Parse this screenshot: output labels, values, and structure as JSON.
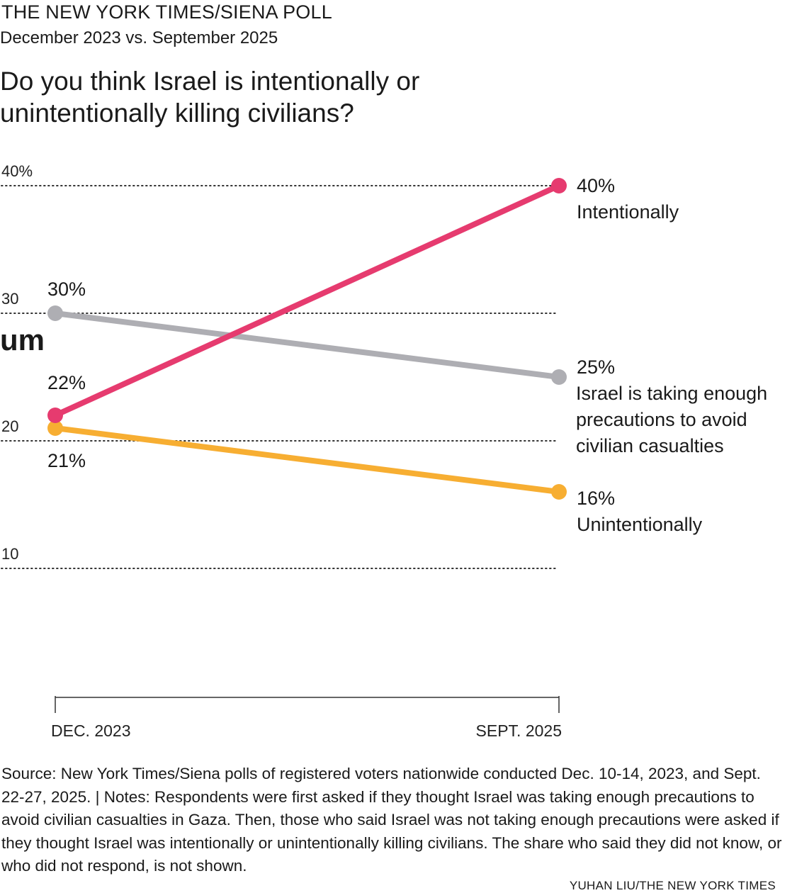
{
  "header": {
    "kicker": "THE NEW YORK TIMES/SIENA POLL",
    "subhead": "December 2023 vs. September 2025",
    "question": "Do you think Israel is intentionally or unintentionally killing civilians?",
    "stray_text": "um"
  },
  "chart_data": {
    "type": "line",
    "title": "Do you think Israel is intentionally or unintentionally killing civilians?",
    "categories": [
      "DEC. 2023",
      "SEPT. 2025"
    ],
    "ylim": [
      0,
      40
    ],
    "yticks": [
      {
        "value": 40,
        "label": "40%"
      },
      {
        "value": 30,
        "label": "30"
      },
      {
        "value": 20,
        "label": "20"
      },
      {
        "value": 10,
        "label": "10"
      }
    ],
    "grid": true,
    "gridstyle": "dotted",
    "series": [
      {
        "name": "Intentionally",
        "color": "#e63b6f",
        "values": [
          22,
          40
        ],
        "labels": [
          "22%",
          "40%"
        ]
      },
      {
        "name": "Israel is taking enough precautions to avoid civilian casualties",
        "color": "#aeaeb3",
        "values": [
          30,
          25
        ],
        "labels": [
          "30%",
          "25%"
        ],
        "name_lines": [
          "Israel is taking enough",
          "precautions to avoid",
          "civilian casualties"
        ]
      },
      {
        "name": "Unintentionally",
        "color": "#f7ae32",
        "values": [
          21,
          16
        ],
        "labels": [
          "21%",
          "16%"
        ]
      }
    ]
  },
  "footer": {
    "source": "Source: New York Times/Siena polls of registered voters nationwide conducted Dec. 10-14, 2023, and Sept. 22-27, 2025. | Notes: Respondents were first asked if they thought Israel was taking enough precautions to avoid civilian casualties in Gaza. Then, those who said Israel was not taking enough precautions were asked if they thought Israel was intentionally or unintentionally killing civilians. The share who said they did not know, or who did not respond, is not shown.",
    "credit": "YUHAN LIU/THE NEW YORK TIMES"
  }
}
